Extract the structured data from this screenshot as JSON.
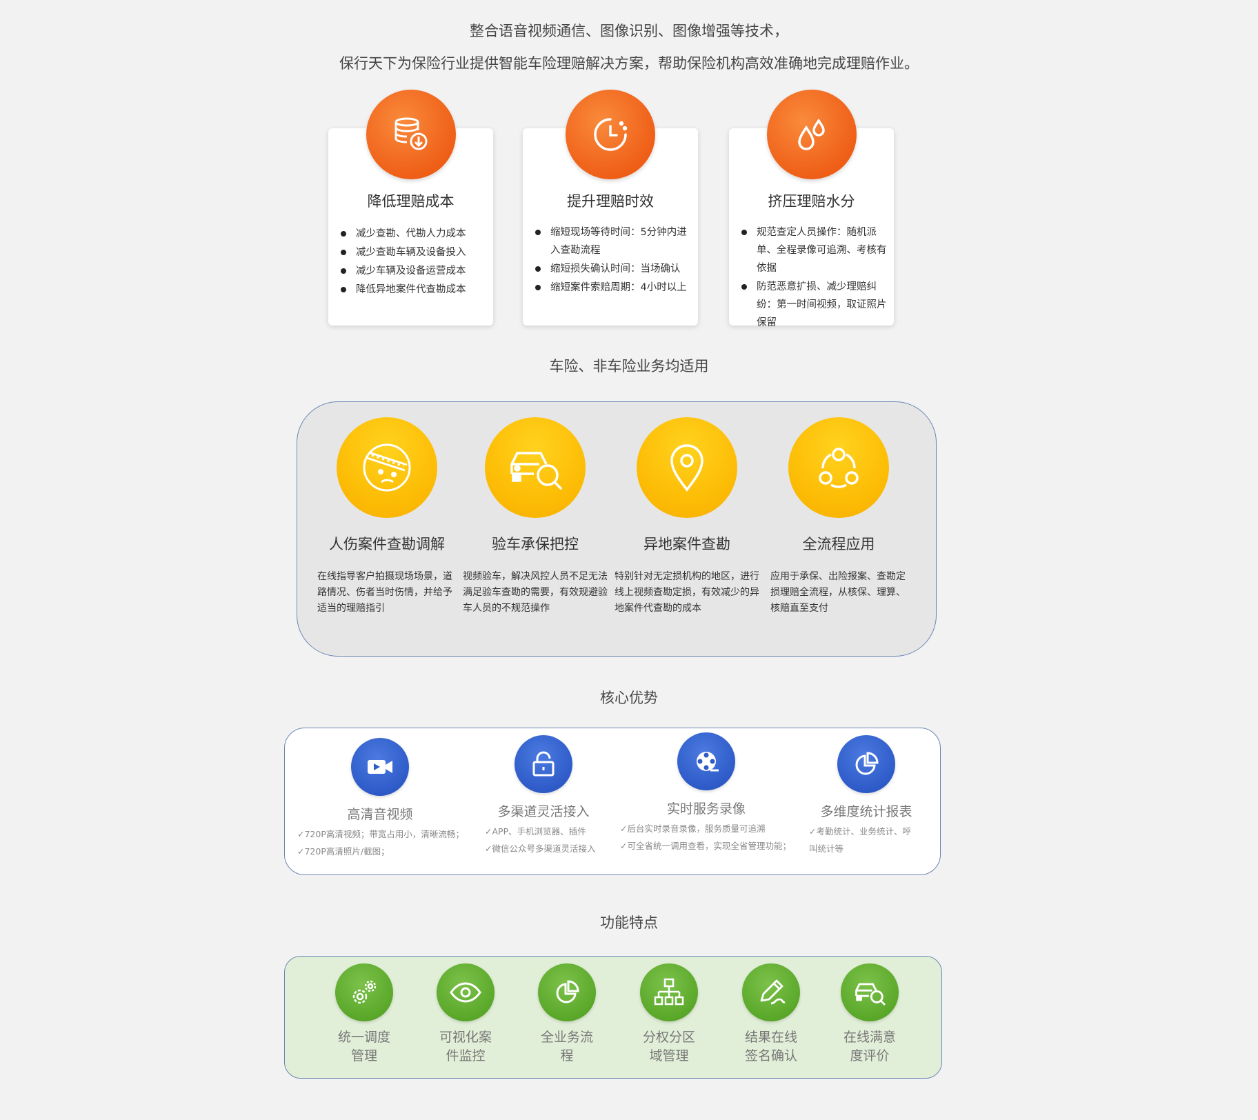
{
  "intro": {
    "line1": "整合语音视频通信、图像识别、图像增强等技术，",
    "line2": "保行天下为保险行业提供智能车险理赔解决方案，帮助保险机构高效准确地完成理赔作业。"
  },
  "benefits": [
    {
      "icon": "database-download-icon",
      "title": "降低理赔成本",
      "items": [
        "减少查勘、代勘人力成本",
        "减少查勘车辆及设备投入",
        "减少车辆及设备运营成本",
        "降低异地案件代查勘成本"
      ]
    },
    {
      "icon": "clock-icon",
      "title": "提升理赔时效",
      "items": [
        "缩短现场等待时间：5分钟内进入查勘流程",
        "缩短损失确认时间：当场确认",
        "缩短案件索赔周期：4小时以上"
      ]
    },
    {
      "icon": "water-drops-icon",
      "title": "挤压理赔水分",
      "items": [
        "规范查定人员操作：随机派单、全程录像可追溯、考核有依据",
        "防范恶意扩损、减少理赔纠纷：第一时间视频，取证照片保留"
      ]
    }
  ],
  "scenarios_title": "车险、非车险业务均适用",
  "scenarios": [
    {
      "icon": "bandaged-face-icon",
      "title": "人伤案件查勘调解",
      "desc": "在线指导客户拍摄现场场景，道路情况、伤者当时伤情，并给予适当的理赔指引"
    },
    {
      "icon": "car-search-icon",
      "title": "验车承保把控",
      "desc": "视频验车，解决风控人员不足无法满足验车查勘的需要，有效规避验车人员的不规范操作"
    },
    {
      "icon": "location-pin-icon",
      "title": "异地案件查勘",
      "desc": "特别针对无定损机构的地区，进行线上视频查勘定损，有效减少的异地案件代查勘的成本"
    },
    {
      "icon": "process-cycle-icon",
      "title": "全流程应用",
      "desc": "应用于承保、出险报案、查勘定损理赔全流程，从核保、理算、核赔直至支付"
    }
  ],
  "advantages_title": "核心优势",
  "advantages": [
    {
      "icon": "video-camera-icon",
      "title": "高清音视频",
      "lines": [
        "✓720P高清视频；带宽占用小，清晰流畅；",
        "✓720P高清照片/截图；"
      ]
    },
    {
      "icon": "lock-icon",
      "title": "多渠道灵活接入",
      "lines": [
        "✓APP、手机浏览器、插件",
        "✓微信公众号多渠道灵活接入"
      ]
    },
    {
      "icon": "film-reel-icon",
      "title": "实时服务录像",
      "lines": [
        "✓后台实时录音录像，服务质量可追溯",
        "✓可全省统一调用查看，实现全省管理功能；"
      ]
    },
    {
      "icon": "pie-chart-icon",
      "title": "多维度统计报表",
      "lines": [
        "✓考勤统计、业务统计、呼",
        "叫统计等"
      ]
    }
  ],
  "features_title": "功能特点",
  "features": [
    {
      "icon": "gears-icon",
      "line1": "统一调度",
      "line2": "管理"
    },
    {
      "icon": "eye-icon",
      "line1": "可视化案",
      "line2": "件监控"
    },
    {
      "icon": "pie-chart-icon",
      "line1": "全业务流",
      "line2": "程"
    },
    {
      "icon": "org-chart-icon",
      "line1": "分权分区",
      "line2": "域管理"
    },
    {
      "icon": "pen-sign-icon",
      "line1": "结果在线",
      "line2": "签名确认"
    },
    {
      "icon": "car-search-icon",
      "line1": "在线满意",
      "line2": "度评价"
    }
  ]
}
